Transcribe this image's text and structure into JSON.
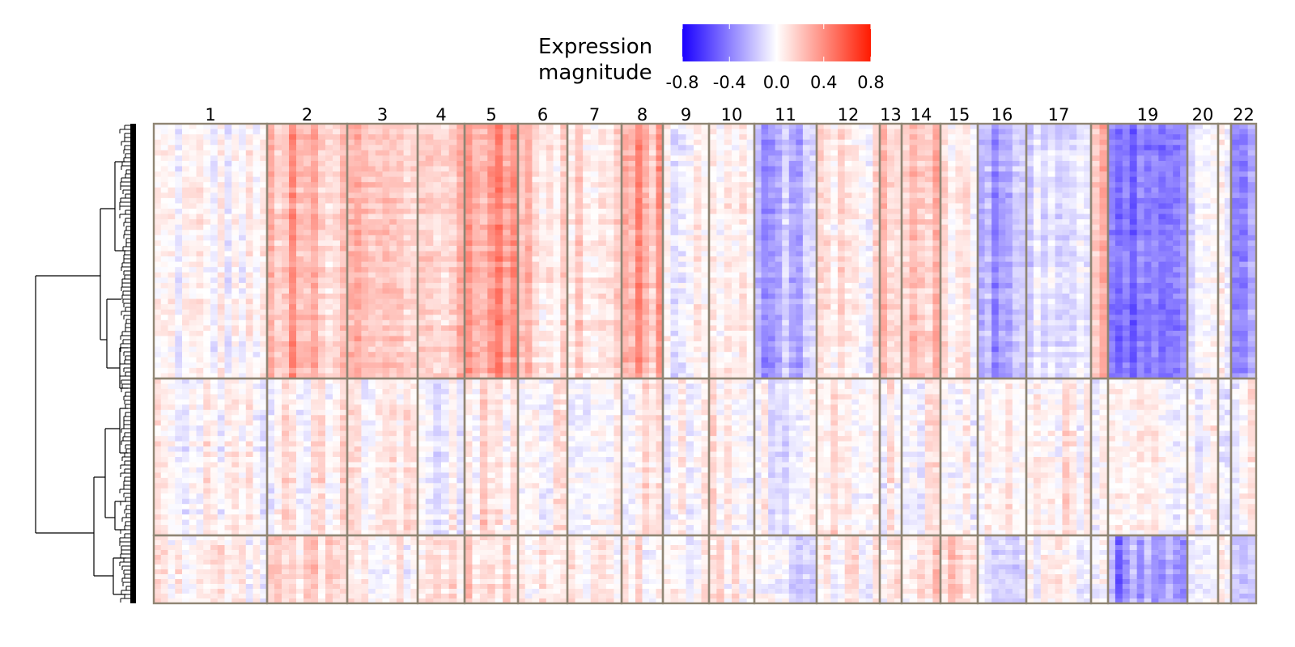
{
  "chart_data": {
    "type": "heatmap",
    "legend": {
      "title_lines": [
        "Expression",
        "magnitude"
      ],
      "ticks": [
        "-0.8",
        "-0.4",
        "0.0",
        "0.4",
        "0.8"
      ],
      "range": [
        -0.8,
        0.8
      ],
      "low_color": "#1a00ff",
      "mid_color": "#ffffff",
      "high_color": "#ff1a00",
      "placement": "top"
    },
    "chromosomes": [
      {
        "id": "1",
        "label": "1"
      },
      {
        "id": "2",
        "label": "2"
      },
      {
        "id": "3",
        "label": "3"
      },
      {
        "id": "4",
        "label": "4"
      },
      {
        "id": "5",
        "label": "5"
      },
      {
        "id": "6",
        "label": "6"
      },
      {
        "id": "7",
        "label": "7"
      },
      {
        "id": "8",
        "label": "8"
      },
      {
        "id": "9",
        "label": "9"
      },
      {
        "id": "10",
        "label": "10"
      },
      {
        "id": "11",
        "label": "11"
      },
      {
        "id": "12",
        "label": "12"
      },
      {
        "id": "13",
        "label": "13"
      },
      {
        "id": "14",
        "label": "14"
      },
      {
        "id": "15",
        "label": "15"
      },
      {
        "id": "16",
        "label": "16"
      },
      {
        "id": "17",
        "label": "17"
      },
      {
        "id": "18",
        "label": ""
      },
      {
        "id": "19",
        "label": "19"
      },
      {
        "id": "20",
        "label": "20"
      },
      {
        "id": "21",
        "label": ""
      },
      {
        "id": "22",
        "label": "22"
      }
    ],
    "row_groups": [
      "group1",
      "group2",
      "group3"
    ],
    "block_means": [
      [
        0.0,
        0.2,
        0.18,
        0.12,
        0.3,
        0.1,
        0.12,
        0.2,
        0.0,
        0.05,
        -0.22,
        0.05,
        0.15,
        0.2,
        0.08,
        -0.18,
        -0.12,
        0.22,
        -0.42,
        -0.1,
        -0.05,
        -0.22
      ],
      [
        0.0,
        0.03,
        0.02,
        0.0,
        0.06,
        0.02,
        0.02,
        0.04,
        0.0,
        0.02,
        -0.03,
        0.03,
        0.03,
        0.03,
        0.03,
        0.02,
        0.03,
        0.02,
        0.0,
        0.02,
        0.0,
        0.0
      ],
      [
        0.05,
        0.12,
        0.05,
        0.06,
        0.15,
        0.05,
        0.05,
        0.08,
        0.0,
        0.08,
        -0.08,
        0.03,
        0.08,
        0.1,
        0.1,
        -0.12,
        0.0,
        0.05,
        -0.25,
        -0.05,
        0.0,
        -0.1
      ]
    ]
  }
}
